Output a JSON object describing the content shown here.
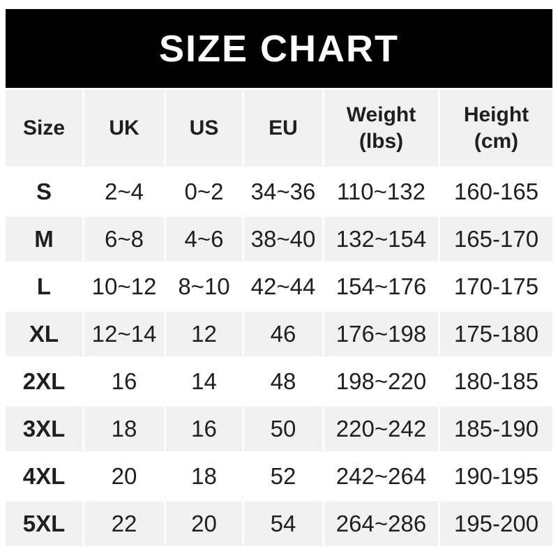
{
  "banner": {
    "title": "SIZE CHART"
  },
  "ui": {
    "headers": [
      {
        "label": "Size",
        "sub": ""
      },
      {
        "label": "UK",
        "sub": ""
      },
      {
        "label": "US",
        "sub": ""
      },
      {
        "label": "EU",
        "sub": ""
      },
      {
        "label": "Weight",
        "sub": "(lbs)"
      },
      {
        "label": "Height",
        "sub": "(cm)"
      }
    ]
  },
  "chart_data": {
    "type": "table",
    "title": "SIZE CHART",
    "columns": [
      "Size",
      "UK",
      "US",
      "EU",
      "Weight (lbs)",
      "Height (cm)"
    ],
    "rows": [
      [
        "S",
        "2~4",
        "0~2",
        "34~36",
        "110~132",
        "160-165"
      ],
      [
        "M",
        "6~8",
        "4~6",
        "38~40",
        "132~154",
        "165-170"
      ],
      [
        "L",
        "10~12",
        "8~10",
        "42~44",
        "154~176",
        "170-175"
      ],
      [
        "XL",
        "12~14",
        "12",
        "46",
        "176~198",
        "175-180"
      ],
      [
        "2XL",
        "16",
        "14",
        "48",
        "198~220",
        "180-185"
      ],
      [
        "3XL",
        "18",
        "16",
        "50",
        "220~242",
        "185-190"
      ],
      [
        "4XL",
        "20",
        "18",
        "52",
        "242~264",
        "190-195"
      ],
      [
        "5XL",
        "22",
        "20",
        "54",
        "264~286",
        "195-200"
      ]
    ]
  },
  "colors": {
    "banner_bg": "#000000",
    "banner_text": "#ffffff",
    "row_shade": "#f1f1f1",
    "text": "#1f1f1f",
    "page_bg": "#ffffff"
  }
}
